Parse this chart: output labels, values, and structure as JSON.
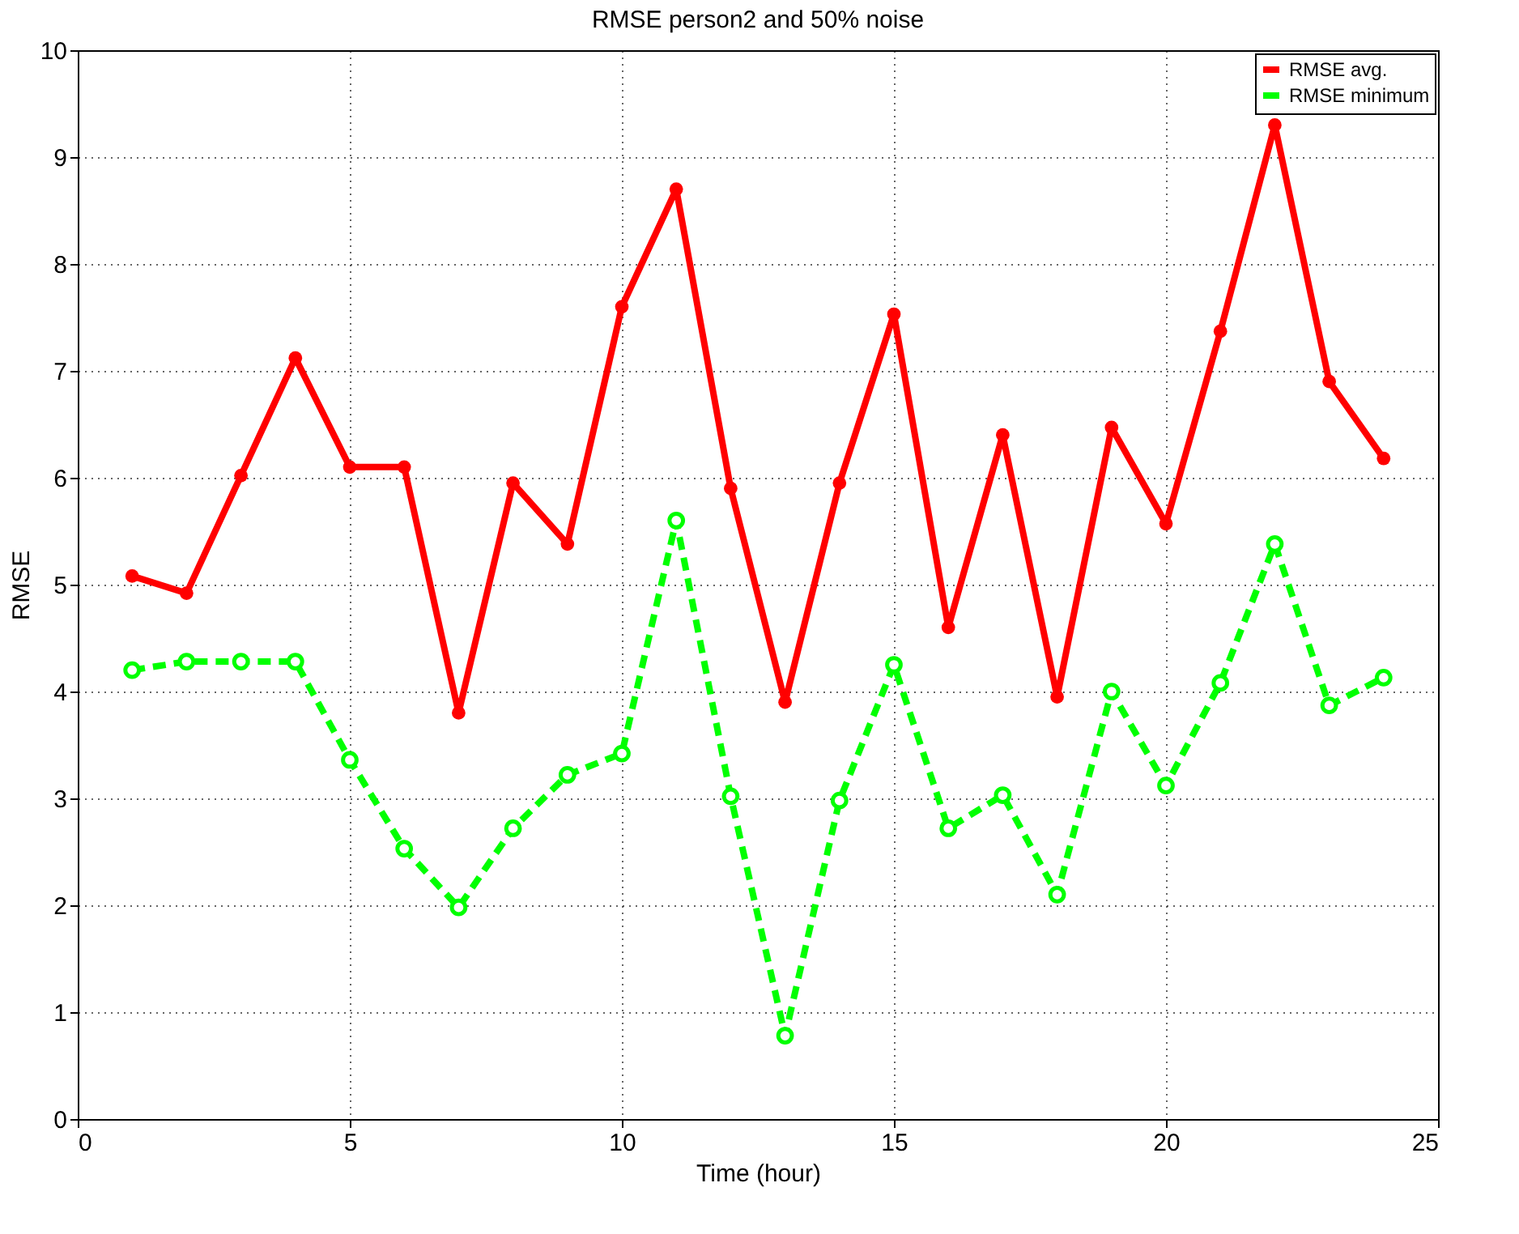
{
  "chart_data": {
    "type": "line",
    "title": "RMSE person2 and 50% noise",
    "xlabel": "Time (hour)",
    "ylabel": "RMSE",
    "x": [
      1,
      2,
      3,
      4,
      5,
      6,
      7,
      8,
      9,
      10,
      11,
      12,
      13,
      14,
      15,
      16,
      17,
      18,
      19,
      20,
      21,
      22,
      23,
      24
    ],
    "series": [
      {
        "name": "RMSE avg.",
        "color": "#ff0000",
        "line_style": "solid",
        "values": [
          5.08,
          4.92,
          6.02,
          7.12,
          6.1,
          6.1,
          3.8,
          5.95,
          5.38,
          7.6,
          8.7,
          5.9,
          3.9,
          5.95,
          7.53,
          4.6,
          6.4,
          3.95,
          6.47,
          5.57,
          7.37,
          9.3,
          6.9,
          6.18
        ]
      },
      {
        "name": "RMSE minimum",
        "color": "#00ff00",
        "line_style": "dashed",
        "values": [
          4.2,
          4.28,
          4.28,
          4.28,
          3.36,
          2.53,
          1.98,
          2.72,
          3.22,
          3.42,
          5.6,
          3.02,
          0.78,
          2.98,
          4.25,
          2.72,
          3.03,
          2.1,
          4.0,
          3.12,
          4.08,
          5.38,
          3.87,
          4.13
        ]
      }
    ],
    "xlim": [
      0,
      25
    ],
    "xticks": [
      0,
      5,
      10,
      15,
      20,
      25
    ],
    "ylim": [
      0,
      10
    ],
    "yticks": [
      0,
      1,
      2,
      3,
      4,
      5,
      6,
      7,
      8,
      9,
      10
    ],
    "grid": true,
    "legend": "top right",
    "marker": "circle"
  }
}
